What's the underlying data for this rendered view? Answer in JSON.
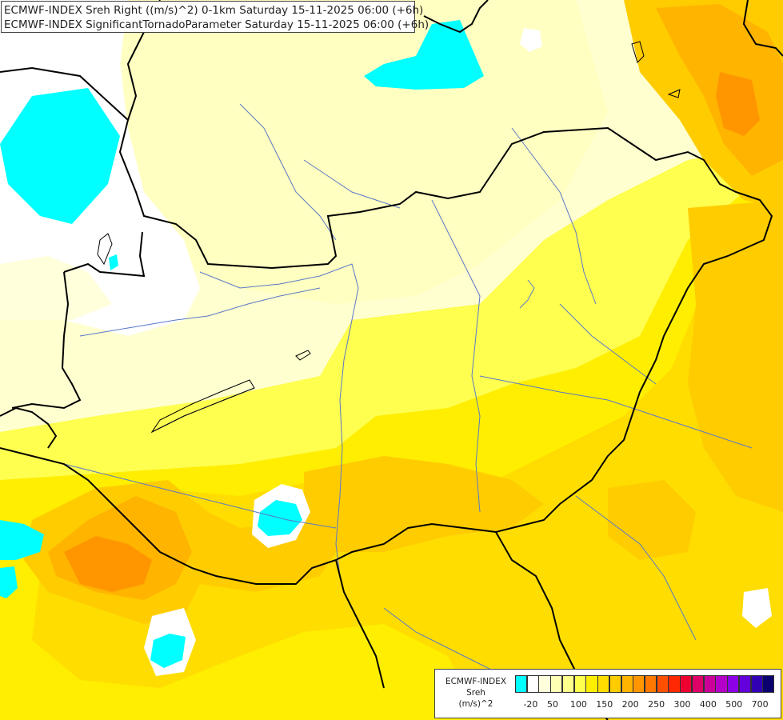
{
  "title": {
    "line1": "ECMWF-INDEX Sreh Right ((m/s)^2) 0-1km Saturday 15-11-2025 06:00 (+6h)",
    "line2": "ECMWF-INDEX SignificantTornadoParameter Saturday 15-11-2025 06:00 (+6h)"
  },
  "legend": {
    "model": "ECMWF-INDEX",
    "variable": "Sreh",
    "unit": "(m/s)^2",
    "colors": [
      "#00ffff",
      "#ffffff",
      "#ffffdc",
      "#ffffb4",
      "#ffff8c",
      "#ffff50",
      "#ffee00",
      "#ffdd00",
      "#ffcc00",
      "#ffb400",
      "#ff9600",
      "#ff7800",
      "#ff5000",
      "#ff2800",
      "#ee0030",
      "#dd0066",
      "#cc0099",
      "#b400c8",
      "#8c00e6",
      "#6400dc",
      "#3200b4",
      "#0a006e"
    ],
    "tick_labels": [
      "-20",
      "50",
      "100",
      "150",
      "200",
      "250",
      "300",
      "400",
      "500",
      "700"
    ]
  },
  "map": {
    "background_color": "#ffffd0",
    "fill_colors": {
      "light": "#ffffb4",
      "yellow": "#ffff50",
      "gold": "#ffee00",
      "amber": "#ffdd00",
      "orange": "#ffcc00",
      "deep_orange": "#ffb400",
      "red_orange": "#ff9600",
      "negative": "#00ffff",
      "zero": "#ffffff",
      "near_zero": "#ffffdc"
    },
    "border_color": "#000000",
    "river_color": "#5a78c8"
  }
}
